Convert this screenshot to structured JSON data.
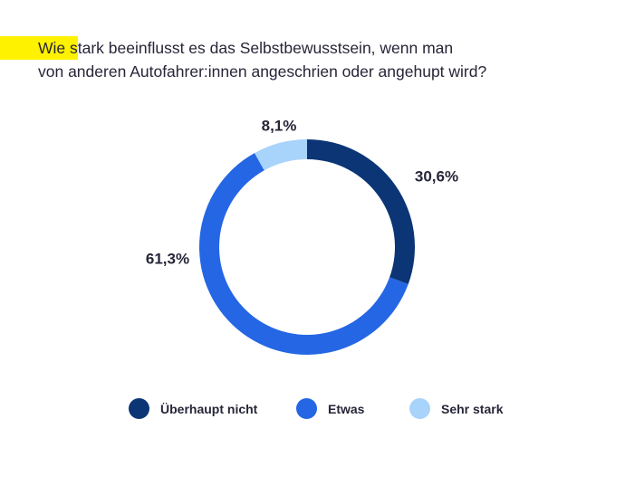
{
  "title": {
    "line1": "Wie stark beeinflusst es das Selbstbewusstsein, wenn man",
    "line2": "von anderen Autofahrer:innen angeschrien oder angehupt wird?"
  },
  "chart_data": {
    "type": "pie",
    "variant": "donut",
    "title": "Wie stark beeinflusst es das Selbstbewusstsein, wenn man von anderen Autofahrer:innen angeschrien oder angehupt wird?",
    "categories": [
      "Überhaupt nicht",
      "Etwas",
      "Sehr stark"
    ],
    "values": [
      30.6,
      61.3,
      8.1
    ],
    "labels": [
      "30,6%",
      "61,3%",
      "8,1%"
    ],
    "colors": [
      "#0b3575",
      "#2466e4",
      "#a8d3fb"
    ],
    "legend_position": "bottom"
  },
  "colors": {
    "highlight": "#fff200",
    "text": "#262638"
  }
}
